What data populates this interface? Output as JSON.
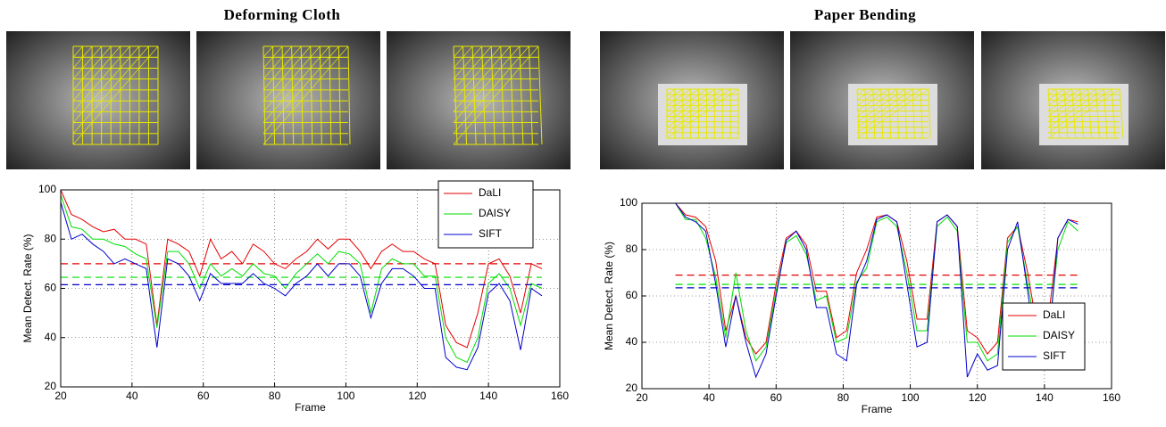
{
  "chart_data": [
    {
      "type": "line",
      "title": "Deforming Cloth",
      "x_label": "Frame",
      "y_label": "Mean Detect. Rate (%)",
      "x": [
        20,
        23,
        26,
        29,
        32,
        35,
        38,
        41,
        44,
        47,
        50,
        53,
        56,
        59,
        62,
        65,
        68,
        71,
        74,
        77,
        80,
        83,
        86,
        89,
        92,
        95,
        98,
        101,
        104,
        107,
        110,
        113,
        116,
        119,
        122,
        125,
        128,
        131,
        134,
        137,
        140,
        143,
        146,
        149,
        152,
        155
      ],
      "xlim": [
        20,
        160
      ],
      "xticks": [
        20,
        40,
        60,
        80,
        100,
        120,
        140,
        160
      ],
      "ylim": [
        20,
        100
      ],
      "yticks": [
        20,
        40,
        60,
        80,
        100
      ],
      "grid": true,
      "legend": "upper right",
      "series": [
        {
          "name": "DaLI",
          "color": "#e60000",
          "mean": 70,
          "values": [
            100,
            90,
            88,
            85,
            83,
            84,
            80,
            80,
            78,
            45,
            80,
            78,
            75,
            65,
            80,
            72,
            75,
            70,
            78,
            75,
            70,
            68,
            72,
            75,
            80,
            76,
            80,
            80,
            75,
            68,
            75,
            78,
            75,
            75,
            72,
            70,
            45,
            38,
            36,
            50,
            70,
            72,
            65,
            50,
            70,
            68
          ]
        },
        {
          "name": "DAISY",
          "color": "#00dd00",
          "mean": 64.5,
          "values": [
            98,
            85,
            84,
            80,
            80,
            78,
            77,
            74,
            72,
            44,
            75,
            75,
            70,
            60,
            70,
            65,
            68,
            65,
            70,
            66,
            65,
            60,
            66,
            70,
            74,
            70,
            75,
            74,
            70,
            50,
            68,
            72,
            70,
            70,
            65,
            65,
            40,
            32,
            30,
            40,
            62,
            66,
            60,
            45,
            62,
            60
          ]
        },
        {
          "name": "SIFT",
          "color": "#0000cc",
          "mean": 61.5,
          "values": [
            95,
            80,
            82,
            78,
            75,
            70,
            72,
            70,
            68,
            36,
            72,
            70,
            65,
            55,
            66,
            62,
            62,
            62,
            66,
            62,
            60,
            57,
            62,
            65,
            70,
            65,
            70,
            70,
            65,
            48,
            62,
            68,
            68,
            65,
            60,
            60,
            32,
            28,
            27,
            36,
            58,
            62,
            55,
            35,
            60,
            57
          ]
        }
      ]
    },
    {
      "type": "line",
      "title": "Paper Bending",
      "x_label": "Frame",
      "y_label": "Mean Detect. Rate (%)",
      "x": [
        30,
        33,
        36,
        39,
        42,
        45,
        48,
        51,
        54,
        57,
        60,
        63,
        66,
        69,
        72,
        75,
        78,
        81,
        84,
        87,
        90,
        93,
        96,
        99,
        102,
        105,
        108,
        111,
        114,
        117,
        120,
        123,
        126,
        129,
        132,
        135,
        138,
        141,
        144,
        147,
        150
      ],
      "xlim": [
        20,
        160
      ],
      "xticks": [
        20,
        40,
        60,
        80,
        100,
        120,
        140,
        160
      ],
      "ylim": [
        20,
        100
      ],
      "yticks": [
        20,
        40,
        60,
        80,
        100
      ],
      "grid": true,
      "legend": "lower right",
      "series": [
        {
          "name": "DaLI",
          "color": "#e60000",
          "mean": 69,
          "values": [
            100,
            95,
            94,
            90,
            75,
            45,
            60,
            42,
            35,
            40,
            65,
            85,
            88,
            82,
            62,
            62,
            42,
            45,
            70,
            80,
            94,
            95,
            92,
            75,
            50,
            50,
            92,
            95,
            90,
            45,
            42,
            35,
            40,
            85,
            90,
            70,
            45,
            48,
            85,
            93,
            92
          ]
        },
        {
          "name": "DAISY",
          "color": "#00dd00",
          "mean": 65,
          "values": [
            100,
            93,
            93,
            85,
            68,
            42,
            70,
            45,
            32,
            38,
            62,
            83,
            86,
            78,
            58,
            60,
            40,
            42,
            66,
            72,
            92,
            94,
            90,
            70,
            45,
            45,
            90,
            94,
            88,
            40,
            40,
            32,
            35,
            83,
            90,
            65,
            42,
            40,
            80,
            92,
            88
          ]
        },
        {
          "name": "SIFT",
          "color": "#0000cc",
          "mean": 63.5,
          "values": [
            100,
            94,
            92,
            88,
            65,
            38,
            60,
            40,
            25,
            35,
            60,
            84,
            88,
            80,
            55,
            55,
            35,
            32,
            65,
            75,
            93,
            95,
            92,
            65,
            38,
            40,
            92,
            95,
            90,
            25,
            35,
            28,
            30,
            80,
            92,
            62,
            30,
            35,
            85,
            93,
            91
          ]
        }
      ]
    }
  ]
}
